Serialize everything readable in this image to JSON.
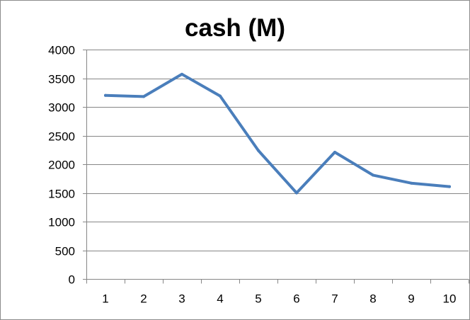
{
  "chart_data": {
    "type": "line",
    "title": "cash (M)",
    "xlabel": "",
    "ylabel": "",
    "categories": [
      "1",
      "2",
      "3",
      "4",
      "5",
      "6",
      "7",
      "8",
      "9",
      "10"
    ],
    "series": [
      {
        "values": [
          3200,
          3180,
          3570,
          3190,
          2240,
          1500,
          2210,
          1810,
          1670,
          1610
        ],
        "color": "#4a7ebb"
      }
    ],
    "ylim": [
      0,
      4000
    ],
    "yticks": [
      0,
      500,
      1000,
      1500,
      2000,
      2500,
      3000,
      3500,
      4000
    ],
    "grid": true,
    "legend": "none",
    "colors": {
      "gridline": "#868686",
      "axis": "#868686",
      "line": "#4a7ebb"
    }
  }
}
